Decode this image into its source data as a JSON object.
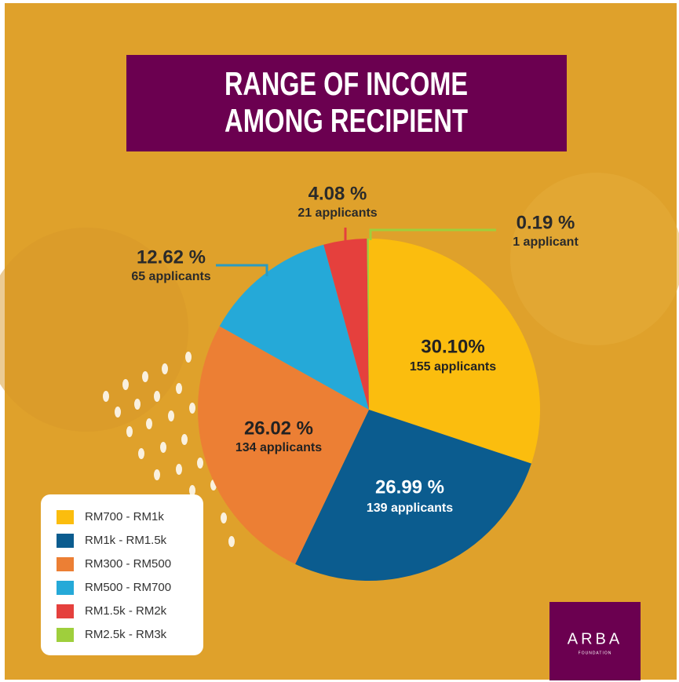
{
  "chart_data": {
    "type": "pie",
    "title": [
      "RANGE OF INCOME",
      "AMONG RECIPIENT"
    ],
    "categories": [
      "RM700 - RM1k",
      "RM1k - RM1.5k",
      "RM300 - RM500",
      "RM500 - RM700",
      "RM1.5k - RM2k",
      "RM2.5k - RM3k"
    ],
    "values": [
      30.1,
      26.99,
      26.02,
      12.62,
      4.08,
      0.19
    ],
    "value_labels": [
      "30.10%",
      "26.99 %",
      "26.02 %",
      "12.62 %",
      "4.08 %",
      "0.19 %"
    ],
    "sublabels": [
      "155 applicants",
      "139 applicants",
      "134 applicants",
      "65 applicants",
      "21 applicants",
      "1 applicant"
    ],
    "colors": [
      "#fbbd0e",
      "#0b5c8f",
      "#ec7f34",
      "#25a9d8",
      "#e5403d",
      "#9fcf3c"
    ],
    "legend": "bottom-left",
    "logo": {
      "name": "ARBA",
      "subtitle": "FOUNDATION"
    }
  }
}
